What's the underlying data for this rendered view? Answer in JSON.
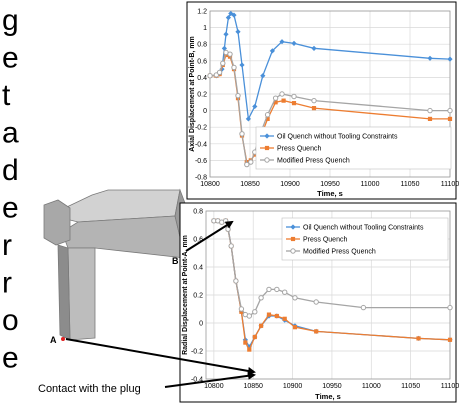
{
  "side_text": [
    "g",
    "e",
    "t",
    "a",
    "d",
    "e",
    "r",
    "r",
    "o",
    "e"
  ],
  "model": {
    "point_a_label": "A",
    "point_b_label": "B"
  },
  "callout": {
    "text": "Contact with the plug"
  },
  "colors": {
    "oil": "#4a90d9",
    "press": "#ed7d31",
    "modified": "#a5a5a5",
    "arrow": "#000000",
    "model_light": "#c8c8c8",
    "model_dark": "#8c8c8c"
  },
  "chart_data": [
    {
      "type": "line",
      "ylabel": "Axial Displacement at Point-B, mm",
      "xlabel": "Time, s",
      "xlim": [
        10800,
        11100
      ],
      "ylim": [
        -0.8,
        1.2
      ],
      "xticks": [
        10800,
        10850,
        10900,
        10950,
        11000,
        11050,
        11100
      ],
      "yticks": [
        -0.8,
        -0.6,
        -0.4,
        -0.2,
        0,
        0.2,
        0.4,
        0.6,
        0.8,
        1,
        1.2
      ],
      "ytick_labels": [
        "-0.8",
        "-0.6",
        "-0.4",
        "-0.2",
        "0",
        "0.2",
        "0.4",
        "0.6",
        "0.8",
        "1",
        "1.2"
      ],
      "grid": true,
      "legend_position": "bottom-right",
      "series": [
        {
          "name": "Oil Quench without Tooling Constraints",
          "marker": "diamond",
          "x": [
            10800,
            10808,
            10812,
            10815,
            10818,
            10820,
            10823,
            10826,
            10830,
            10835,
            10840,
            10848,
            10856,
            10866,
            10878,
            10890,
            10905,
            10930,
            11075,
            11100
          ],
          "y": [
            0.42,
            0.42,
            0.44,
            0.5,
            0.75,
            0.92,
            1.12,
            1.17,
            1.15,
            0.95,
            0.55,
            -0.1,
            0.05,
            0.42,
            0.72,
            0.83,
            0.81,
            0.75,
            0.63,
            0.62
          ]
        },
        {
          "name": "Press Quench",
          "marker": "square",
          "x": [
            10800,
            10808,
            10812,
            10816,
            10820,
            10825,
            10830,
            10835,
            10840,
            10846,
            10851,
            10856,
            10862,
            10872,
            10882,
            10892,
            10905,
            10930,
            11075,
            11100
          ],
          "y": [
            0.42,
            0.42,
            0.44,
            0.55,
            0.67,
            0.65,
            0.5,
            0.15,
            -0.3,
            -0.62,
            -0.6,
            -0.53,
            -0.35,
            -0.1,
            0.1,
            0.12,
            0.09,
            0.03,
            -0.1,
            -0.1
          ]
        },
        {
          "name": "Modified Press Quench",
          "marker": "circle",
          "x": [
            10800,
            10808,
            10812,
            10816,
            10820,
            10825,
            10830,
            10835,
            10840,
            10846,
            10851,
            10856,
            10862,
            10872,
            10882,
            10890,
            10905,
            10930,
            11075,
            11100
          ],
          "y": [
            0.42,
            0.43,
            0.46,
            0.57,
            0.7,
            0.68,
            0.52,
            0.18,
            -0.28,
            -0.65,
            -0.62,
            -0.5,
            -0.3,
            -0.05,
            0.15,
            0.2,
            0.17,
            0.12,
            0.0,
            0.0
          ]
        }
      ]
    },
    {
      "type": "line",
      "ylabel": "Radial Displacement at Point-A, mm",
      "xlabel": "Time, s",
      "xlim": [
        10790,
        11100
      ],
      "ylim": [
        -0.4,
        0.8
      ],
      "xticks": [
        10800,
        10850,
        10900,
        10950,
        11000,
        11050,
        11100
      ],
      "yticks": [
        -0.4,
        -0.2,
        0,
        0.2,
        0.4,
        0.6,
        0.8
      ],
      "ytick_labels": [
        "-0.4",
        "-0.2",
        "0",
        "0.2",
        "0.4",
        "0.6",
        "0.8"
      ],
      "grid": true,
      "legend_position": "top-right",
      "series": [
        {
          "name": "Oil Quench without Tooling Constraints",
          "marker": "diamond",
          "x": [
            10800,
            10805,
            10810,
            10815,
            10818,
            10822,
            10828,
            10835,
            10840,
            10845,
            10852,
            10860,
            10870,
            10880,
            10890,
            10903,
            10930,
            11060,
            11100
          ],
          "y": [
            0.73,
            0.73,
            0.72,
            0.73,
            0.68,
            0.55,
            0.3,
            0.08,
            -0.12,
            -0.17,
            -0.1,
            -0.02,
            0.05,
            0.05,
            0.02,
            -0.02,
            -0.06,
            -0.11,
            -0.12
          ]
        },
        {
          "name": "Press Quench",
          "marker": "square",
          "x": [
            10800,
            10805,
            10810,
            10815,
            10818,
            10822,
            10828,
            10835,
            10840,
            10845,
            10852,
            10860,
            10870,
            10880,
            10890,
            10903,
            10930,
            11060,
            11100
          ],
          "y": [
            0.73,
            0.73,
            0.72,
            0.73,
            0.67,
            0.55,
            0.3,
            0.08,
            -0.14,
            -0.19,
            -0.1,
            -0.02,
            0.06,
            0.05,
            0.03,
            -0.03,
            -0.06,
            -0.11,
            -0.12
          ]
        },
        {
          "name": "Modified Press Quench",
          "marker": "circle",
          "x": [
            10800,
            10805,
            10810,
            10815,
            10818,
            10822,
            10828,
            10835,
            10840,
            10845,
            10852,
            10860,
            10870,
            10880,
            10890,
            10903,
            10930,
            10990,
            11100
          ],
          "y": [
            0.73,
            0.73,
            0.72,
            0.73,
            0.67,
            0.55,
            0.3,
            0.1,
            0.06,
            0.05,
            0.08,
            0.18,
            0.24,
            0.24,
            0.22,
            0.18,
            0.15,
            0.11,
            0.11
          ]
        }
      ]
    }
  ]
}
